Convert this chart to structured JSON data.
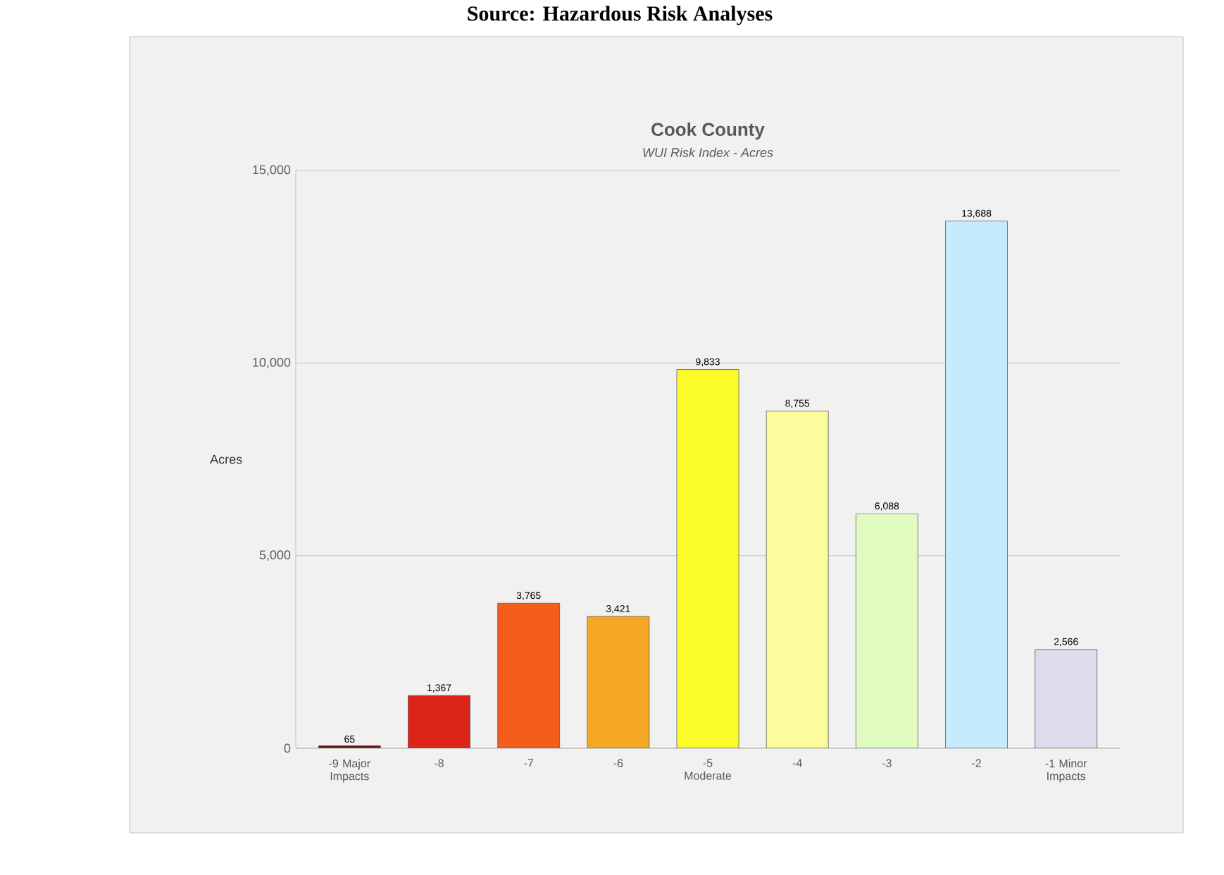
{
  "chart_data": {
    "type": "bar",
    "title": "Cook County",
    "subtitle": "WUI Risk Index - Acres",
    "ylabel": "Acres",
    "annotations": [
      "Source: Hazardous Risk Analyses"
    ],
    "categories": [
      "-9 Major Impacts",
      "-8",
      "-7",
      "-6",
      "-5 Moderate",
      "-4",
      "-3",
      "-2",
      "-1 Minor Impacts"
    ],
    "values": [
      65,
      1367,
      3765,
      3421,
      9833,
      8755,
      6088,
      13688,
      2566
    ],
    "colors": [
      "#6b1a1a",
      "#dd2418",
      "#f55d1c",
      "#f5a823",
      "#fcfc2c",
      "#fcfc9c",
      "#e0fcc0",
      "#c4ecfc",
      "#dcdcec"
    ],
    "ylim": [
      0,
      15000
    ],
    "yticks": [
      {
        "value": 0,
        "label": "0"
      },
      {
        "value": 5000,
        "label": "5,000"
      },
      {
        "value": 10000,
        "label": "10,000"
      },
      {
        "value": 15000,
        "label": "15,000"
      }
    ],
    "value_labels": [
      "65",
      "1,367",
      "3,765",
      "3,421",
      "9,833",
      "8,755",
      "6,088",
      "13,688",
      "2,566"
    ],
    "grid": "y"
  }
}
